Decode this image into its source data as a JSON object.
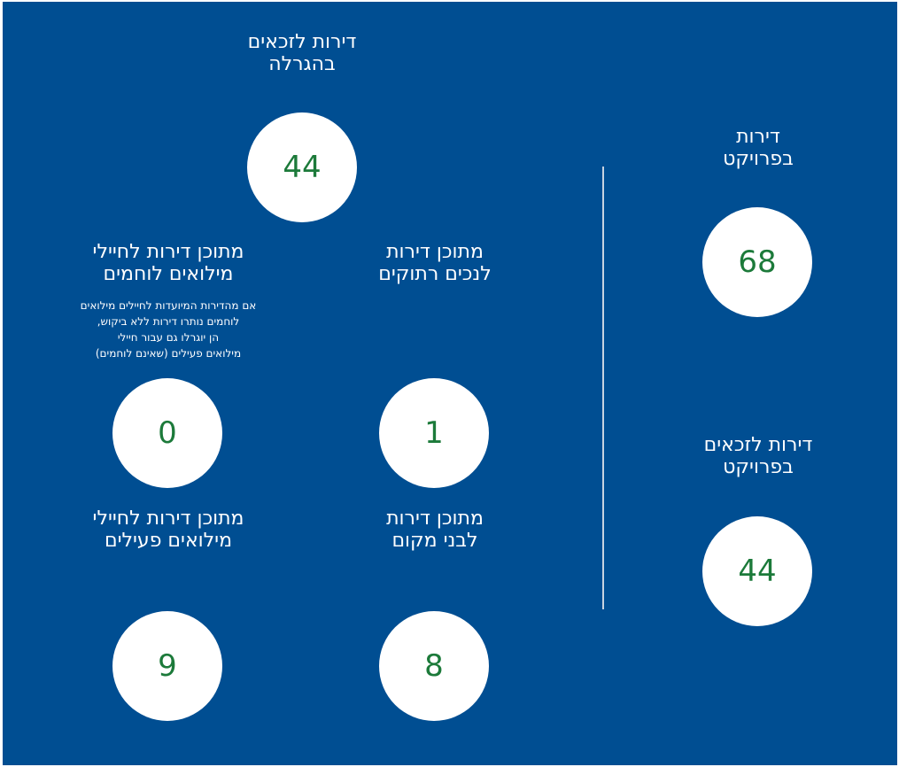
{
  "colors": {
    "background": "#004e92",
    "circle": "#ffffff",
    "number": "#1c7a3a",
    "divider": "#c8d3e0"
  },
  "stats": {
    "lottery_winners": {
      "label": "דירות לזכאים\nבהגרלה",
      "value": "44"
    },
    "veterans": {
      "label": "מתוכן דירות\nלנכים רתוקים",
      "value": "1"
    },
    "reserve_combat": {
      "label": "מתוכן דירות לחיילי\nמילואים לוחמים",
      "note": "אם מהדירות המיועדות לחיילים מילואים\nלוחמים נותרו דירות ללא ביקוש,\nהן יוגרלו גם עבור חיילי\nמילואים פעילים (שאינם לוחמים)",
      "value": "0"
    },
    "local_residents": {
      "label": "מתוכן דירות\nלבני מקום",
      "value": "8"
    },
    "reserve_active": {
      "label": "מתוכן דירות לחיילי\nמילואים פעילים",
      "value": "9"
    },
    "project_apartments": {
      "label": "דירות\nבפרויקט",
      "value": "68"
    },
    "project_eligible": {
      "label": "דירות לזכאים\nבפרויקט",
      "value": "44"
    }
  }
}
